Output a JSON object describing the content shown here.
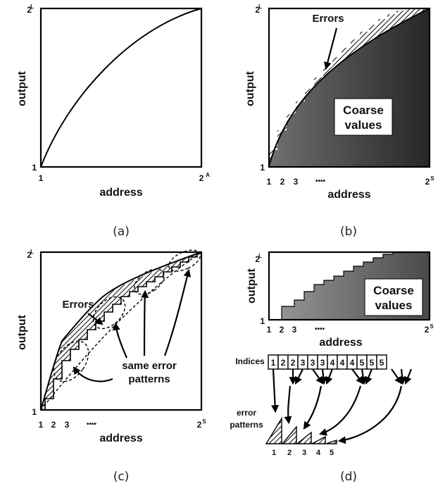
{
  "panel_a": {
    "ylabel": "output",
    "xlabel": "address",
    "y_bottom": "1",
    "y_top": "2",
    "y_top_sup": "L",
    "x_left": "1",
    "x_right": "2",
    "x_right_sup": "A",
    "caption": "(a)"
  },
  "panel_b": {
    "ylabel": "output",
    "xlabel": "address",
    "y_bottom": "1",
    "y_top": "2",
    "y_top_sup": "L",
    "x_ticks": [
      "1",
      "2",
      "3"
    ],
    "x_dots": "••••",
    "x_right": "2",
    "x_right_sup": "S",
    "errors_label": "Errors",
    "coarse_line1": "Coarse",
    "coarse_line2": "values",
    "caption": "(b)"
  },
  "panel_c": {
    "ylabel": "output",
    "xlabel": "address",
    "y_bottom": "1",
    "y_top": "2",
    "y_top_sup": "L",
    "x_ticks": [
      "1",
      "2",
      "3"
    ],
    "x_dots": "••••",
    "x_right": "2",
    "x_right_sup": "S",
    "errors_label": "Errors",
    "same_line1": "same error",
    "same_line2": "patterns",
    "caption": "(c)"
  },
  "panel_d": {
    "ylabel": "output",
    "xlabel": "address",
    "y_bottom": "1",
    "y_top": "2",
    "y_top_sup": "L",
    "x_ticks": [
      "1",
      "2",
      "3"
    ],
    "x_dots": "••••",
    "x_right": "2",
    "x_right_sup": "S",
    "coarse_line1": "Coarse",
    "coarse_line2": "values",
    "indices_label": "Indices",
    "indices": [
      "1",
      "2",
      "2",
      "3",
      "3",
      "3",
      "4",
      "4",
      "4",
      "5",
      "5",
      "5"
    ],
    "error_line1": "error",
    "error_line2": "patterns",
    "pattern_labels": [
      "1",
      "2",
      "3",
      "4",
      "5"
    ],
    "caption": "(d)"
  }
}
